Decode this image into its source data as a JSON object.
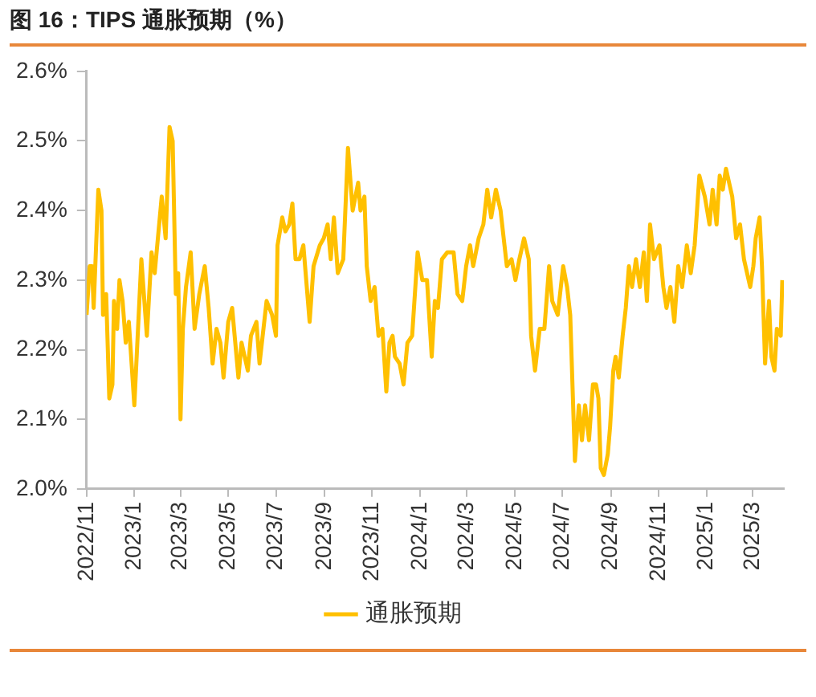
{
  "chart_data": {
    "type": "line",
    "title": "图 16：TIPS 通胀预期（%）",
    "x": [
      "2022-11-01",
      "2022-11-05",
      "2022-11-08",
      "2022-11-10",
      "2022-11-16",
      "2022-11-20",
      "2022-11-22",
      "2022-11-26",
      "2022-11-30",
      "2022-12-04",
      "2022-12-06",
      "2022-12-10",
      "2022-12-13",
      "2022-12-17",
      "2022-12-21",
      "2022-12-25",
      "2023-01-01",
      "2023-01-10",
      "2023-01-17",
      "2023-01-23",
      "2023-01-27",
      "2023-02-05",
      "2023-02-10",
      "2023-02-15",
      "2023-02-19",
      "2023-02-23",
      "2023-02-26",
      "2023-03-01",
      "2023-03-04",
      "2023-03-08",
      "2023-03-14",
      "2023-03-19",
      "2023-03-25",
      "2023-04-01",
      "2023-04-06",
      "2023-04-11",
      "2023-04-16",
      "2023-04-21",
      "2023-04-25",
      "2023-05-01",
      "2023-05-06",
      "2023-05-14",
      "2023-05-18",
      "2023-05-26",
      "2023-05-30",
      "2023-06-06",
      "2023-06-10",
      "2023-06-19",
      "2023-06-26",
      "2023-07-01",
      "2023-07-03",
      "2023-07-09",
      "2023-07-13",
      "2023-07-18",
      "2023-07-22",
      "2023-07-26",
      "2023-07-31",
      "2023-08-05",
      "2023-08-13",
      "2023-08-18",
      "2023-08-26",
      "2023-08-31",
      "2023-09-05",
      "2023-09-09",
      "2023-09-13",
      "2023-09-18",
      "2023-09-25",
      "2023-10-01",
      "2023-10-07",
      "2023-10-14",
      "2023-10-17",
      "2023-10-22",
      "2023-10-25",
      "2023-10-30",
      "2023-11-04",
      "2023-11-09",
      "2023-11-14",
      "2023-11-19",
      "2023-11-23",
      "2023-11-27",
      "2023-11-30",
      "2023-12-06",
      "2023-12-11",
      "2023-12-16",
      "2023-12-22",
      "2023-12-29",
      "2024-01-04",
      "2024-01-10",
      "2024-01-16",
      "2024-01-20",
      "2024-01-24",
      "2024-01-29",
      "2024-02-05",
      "2024-02-13",
      "2024-02-18",
      "2024-02-24",
      "2024-02-29",
      "2024-03-05",
      "2024-03-09",
      "2024-03-16",
      "2024-03-22",
      "2024-03-27",
      "2024-04-01",
      "2024-04-07",
      "2024-04-13",
      "2024-04-18",
      "2024-04-21",
      "2024-04-27",
      "2024-05-02",
      "2024-05-07",
      "2024-05-13",
      "2024-05-19",
      "2024-05-22",
      "2024-05-27",
      "2024-06-02",
      "2024-06-08",
      "2024-06-14",
      "2024-06-18",
      "2024-06-25",
      "2024-07-02",
      "2024-07-07",
      "2024-07-11",
      "2024-07-17",
      "2024-07-22",
      "2024-07-26",
      "2024-07-30",
      "2024-08-04",
      "2024-08-09",
      "2024-08-13",
      "2024-08-16",
      "2024-08-19",
      "2024-08-23",
      "2024-08-28",
      "2024-08-31",
      "2024-09-04",
      "2024-09-07",
      "2024-09-11",
      "2024-09-16",
      "2024-09-20",
      "2024-09-24",
      "2024-09-28",
      "2024-10-03",
      "2024-10-08",
      "2024-10-13",
      "2024-10-17",
      "2024-10-21",
      "2024-10-26",
      "2024-11-02",
      "2024-11-07",
      "2024-11-11",
      "2024-11-16",
      "2024-11-21",
      "2024-11-26",
      "2024-12-01",
      "2024-12-07",
      "2024-12-12",
      "2024-12-17",
      "2024-12-23",
      "2024-12-30",
      "2025-01-05",
      "2025-01-09",
      "2025-01-14",
      "2025-01-18",
      "2025-01-22",
      "2025-01-26",
      "2025-01-30",
      "2025-02-03",
      "2025-02-08",
      "2025-02-13",
      "2025-02-18",
      "2025-02-26",
      "2025-03-02",
      "2025-03-05",
      "2025-03-10",
      "2025-03-13",
      "2025-03-17",
      "2025-03-22",
      "2025-03-25",
      "2025-03-29",
      "2025-04-01",
      "2025-04-06",
      "2025-04-08"
    ],
    "series": [
      {
        "name": "通胀预期",
        "color": "#ffc000",
        "values": [
          2.25,
          2.32,
          2.32,
          2.26,
          2.43,
          2.4,
          2.25,
          2.28,
          2.13,
          2.15,
          2.27,
          2.23,
          2.3,
          2.27,
          2.21,
          2.24,
          2.12,
          2.33,
          2.22,
          2.34,
          2.31,
          2.42,
          2.36,
          2.52,
          2.5,
          2.28,
          2.31,
          2.1,
          2.23,
          2.29,
          2.34,
          2.23,
          2.28,
          2.32,
          2.26,
          2.18,
          2.23,
          2.21,
          2.16,
          2.24,
          2.26,
          2.16,
          2.21,
          2.17,
          2.22,
          2.24,
          2.18,
          2.27,
          2.25,
          2.22,
          2.35,
          2.39,
          2.37,
          2.38,
          2.41,
          2.33,
          2.33,
          2.35,
          2.24,
          2.32,
          2.35,
          2.36,
          2.38,
          2.33,
          2.39,
          2.31,
          2.33,
          2.49,
          2.4,
          2.44,
          2.4,
          2.42,
          2.32,
          2.27,
          2.29,
          2.22,
          2.23,
          2.14,
          2.21,
          2.22,
          2.19,
          2.18,
          2.15,
          2.21,
          2.22,
          2.34,
          2.3,
          2.3,
          2.19,
          2.27,
          2.26,
          2.33,
          2.34,
          2.34,
          2.28,
          2.27,
          2.32,
          2.35,
          2.32,
          2.36,
          2.38,
          2.43,
          2.39,
          2.43,
          2.4,
          2.35,
          2.32,
          2.33,
          2.3,
          2.33,
          2.36,
          2.33,
          2.22,
          2.17,
          2.23,
          2.23,
          2.32,
          2.27,
          2.25,
          2.32,
          2.29,
          2.25,
          2.04,
          2.12,
          2.07,
          2.12,
          2.07,
          2.15,
          2.15,
          2.13,
          2.03,
          2.02,
          2.05,
          2.09,
          2.17,
          2.19,
          2.16,
          2.22,
          2.26,
          2.32,
          2.29,
          2.33,
          2.29,
          2.34,
          2.27,
          2.38,
          2.33,
          2.35,
          2.29,
          2.26,
          2.29,
          2.24,
          2.32,
          2.29,
          2.35,
          2.31,
          2.35,
          2.45,
          2.42,
          2.38,
          2.43,
          2.38,
          2.45,
          2.43,
          2.46,
          2.44,
          2.42,
          2.36,
          2.38,
          2.33,
          2.29,
          2.32,
          2.36,
          2.39,
          2.32,
          2.18,
          2.27,
          2.19,
          2.17,
          2.23,
          2.22,
          2.3
        ]
      }
    ],
    "xlim": [
      "2022-11-01",
      "2025-04-10"
    ],
    "xticks": [
      {
        "value": "2022-11-01",
        "label": "2022/11"
      },
      {
        "value": "2023-01-01",
        "label": "2023/1"
      },
      {
        "value": "2023-03-01",
        "label": "2023/3"
      },
      {
        "value": "2023-05-01",
        "label": "2023/5"
      },
      {
        "value": "2023-07-01",
        "label": "2023/7"
      },
      {
        "value": "2023-09-01",
        "label": "2023/9"
      },
      {
        "value": "2023-11-01",
        "label": "2023/11"
      },
      {
        "value": "2024-01-01",
        "label": "2024/1"
      },
      {
        "value": "2024-03-01",
        "label": "2024/3"
      },
      {
        "value": "2024-05-01",
        "label": "2024/5"
      },
      {
        "value": "2024-07-01",
        "label": "2024/7"
      },
      {
        "value": "2024-09-01",
        "label": "2024/9"
      },
      {
        "value": "2024-11-01",
        "label": "2024/11"
      },
      {
        "value": "2025-01-01",
        "label": "2025/1"
      },
      {
        "value": "2025-03-01",
        "label": "2025/3"
      }
    ],
    "ylim": [
      2.0,
      2.6
    ],
    "yticks": [
      {
        "value": 2.0,
        "label": "2.0%"
      },
      {
        "value": 2.1,
        "label": "2.1%"
      },
      {
        "value": 2.2,
        "label": "2.2%"
      },
      {
        "value": 2.3,
        "label": "2.3%"
      },
      {
        "value": 2.4,
        "label": "2.4%"
      },
      {
        "value": 2.5,
        "label": "2.5%"
      },
      {
        "value": 2.6,
        "label": "2.6%"
      }
    ],
    "grid": false,
    "legend": "bottom",
    "marker": "none",
    "line_style": "solid"
  }
}
